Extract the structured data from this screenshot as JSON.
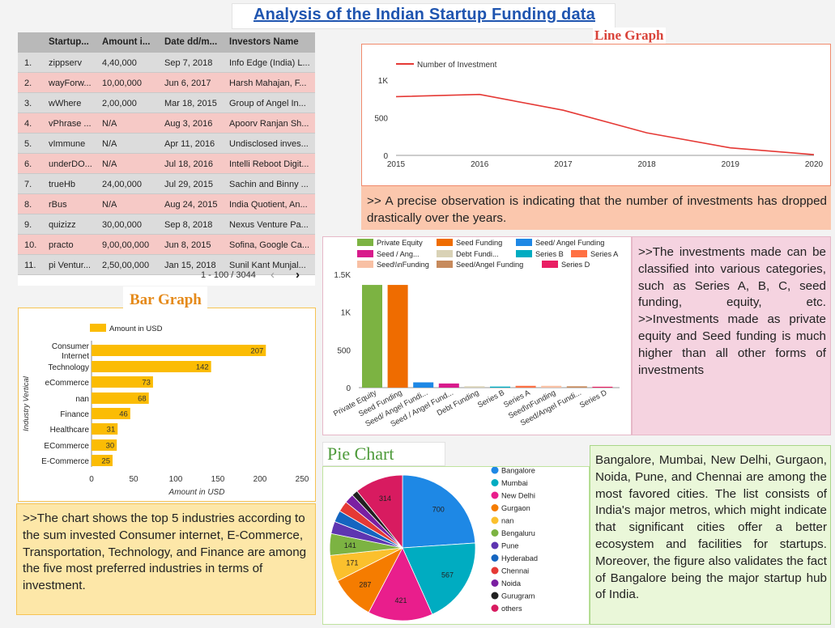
{
  "page": {
    "title": "Analysis of the Indian Startup Funding data",
    "line_heading": "Line Graph",
    "bar_heading": "Bar Graph",
    "pie_heading": "Pie Chart"
  },
  "table": {
    "headers": [
      "Startup...",
      "Amount i...",
      "Date dd/m...",
      "Investors Name"
    ],
    "rows": [
      {
        "idx": "1.",
        "name": "zippserv",
        "amount": "4,40,000",
        "date": "Sep 7, 2018",
        "investors": "Info Edge (India) L..."
      },
      {
        "idx": "2.",
        "name": "wayForw...",
        "amount": "10,00,000",
        "date": "Jun 6, 2017",
        "investors": "Harsh Mahajan, F..."
      },
      {
        "idx": "3.",
        "name": "wWhere",
        "amount": "2,00,000",
        "date": "Mar 18, 2015",
        "investors": "Group of Angel In..."
      },
      {
        "idx": "4.",
        "name": "vPhrase ...",
        "amount": "N/A",
        "date": "Aug 3, 2016",
        "investors": "Apoorv Ranjan Sh..."
      },
      {
        "idx": "5.",
        "name": "vImmune",
        "amount": "N/A",
        "date": "Apr 11, 2016",
        "investors": "Undisclosed inves..."
      },
      {
        "idx": "6.",
        "name": "underDO...",
        "amount": "N/A",
        "date": "Jul 18, 2016",
        "investors": "Intelli Reboot Digit..."
      },
      {
        "idx": "7.",
        "name": "trueHb",
        "amount": "24,00,000",
        "date": "Jul 29, 2015",
        "investors": "Sachin and Binny ..."
      },
      {
        "idx": "8.",
        "name": "rBus",
        "amount": "N/A",
        "date": "Aug 24, 2015",
        "investors": "India Quotient, An..."
      },
      {
        "idx": "9.",
        "name": "quizizz",
        "amount": "30,00,000",
        "date": "Sep 8, 2018",
        "investors": "Nexus Venture Pa..."
      },
      {
        "idx": "10.",
        "name": "practo",
        "amount": "9,00,00,000",
        "date": "Jun 8, 2015",
        "investors": "Sofina, Google Ca..."
      },
      {
        "idx": "11.",
        "name": "pi Ventur...",
        "amount": "2,50,00,000",
        "date": "Jan 15, 2018",
        "investors": "Sunil Kant Munjal..."
      }
    ],
    "pager": "1 - 100 / 3044",
    "prev_icon": "‹",
    "next_icon": "›"
  },
  "texts": {
    "line": ">> A precise observation is indicating that the number of investments has dropped drastically over the years.",
    "investment": ">>The investments made can be classified into various categories, such as Series A, B, C, seed funding, equity, etc. >>Investments made as private equity and Seed funding is much higher than all other forms of investments",
    "bar": ">>The chart shows the top 5 industries according to the sum invested Consumer internet, E-Commerce, Transportation, Technology, and Finance are among the five most preferred industries in terms of investment.",
    "pie": "Bangalore, Mumbai, New Delhi, Gurgaon, Noida, Pune, and Chennai are among the most favored cities. The list consists of India's major metros, which might indicate that significant cities offer a better ecosystem and facilities for startups. Moreover, the figure also validates the fact of Bangalore being the major startup hub of India."
  },
  "chart_data": [
    {
      "type": "line",
      "legend": [
        "Number of Investment"
      ],
      "x": [
        2015,
        2016,
        2017,
        2018,
        2019,
        2020
      ],
      "series": [
        {
          "name": "Number of Investment",
          "values": [
            780,
            810,
            600,
            300,
            100,
            10
          ],
          "color": "#e53935"
        }
      ],
      "yticks": [
        0,
        500,
        "1K"
      ],
      "ylim": [
        0,
        1000
      ],
      "legend_position": "top-left"
    },
    {
      "type": "bar",
      "orientation": "vertical",
      "categories": [
        "Private Equity",
        "Seed Funding",
        "Seed/ Angel Fundi...",
        "Seed / Angel Fund...",
        "Debt Funding",
        "Series B",
        "Series A",
        "Seed\\nFunding",
        "Seed/Angel Fundi...",
        "Series D"
      ],
      "values": [
        1360,
        1360,
        70,
        55,
        18,
        14,
        24,
        24,
        18,
        12
      ],
      "colors": [
        "#7cb342",
        "#ef6c00",
        "#1e88e5",
        "#d81b8c",
        "#d9d2b6",
        "#00acc1",
        "#ff7043",
        "#f8c0a4",
        "#c78a5c",
        "#e91e63"
      ],
      "legend": [
        {
          "name": "Private Equity",
          "color": "#7cb342"
        },
        {
          "name": "Seed Funding",
          "color": "#ef6c00"
        },
        {
          "name": "Seed/ Angel Funding",
          "color": "#1e88e5"
        },
        {
          "name": "Seed / Ang...",
          "color": "#d81b8c"
        },
        {
          "name": "Debt Fundi...",
          "color": "#d9d2b6"
        },
        {
          "name": "Series B",
          "color": "#00acc1"
        },
        {
          "name": "Series A",
          "color": "#ff7043"
        },
        {
          "name": "Seed\\\\nFunding",
          "color": "#f8c0a4"
        },
        {
          "name": "Seed/Angel Funding",
          "color": "#c78a5c"
        },
        {
          "name": "Series D",
          "color": "#e91e63"
        }
      ],
      "yticks": [
        0,
        500,
        "1K",
        "1.5K"
      ],
      "ylim": [
        0,
        1500
      ],
      "legend_position": "top"
    },
    {
      "type": "bar",
      "orientation": "horizontal",
      "categories": [
        "Consumer Internet",
        "Technology",
        "eCommerce",
        "nan",
        "Finance",
        "Healthcare",
        "ECommerce",
        "E-Commerce"
      ],
      "values": [
        207,
        142,
        73,
        68,
        46,
        31,
        30,
        25
      ],
      "color": "#fbbc04",
      "legend": [
        "Amount in USD"
      ],
      "xlabel": "Amount in USD",
      "ylabel": "Industry Vertical",
      "xticks": [
        0,
        50,
        100,
        150,
        200,
        250
      ],
      "xlim": [
        0,
        250
      ],
      "legend_position": "top"
    },
    {
      "type": "pie",
      "labels": [
        "Bangalore",
        "Mumbai",
        "New Delhi",
        "Gurgaon",
        "nan",
        "Bengaluru",
        "Pune",
        "Hyderabad",
        "Chennai",
        "Noida",
        "Gurugram",
        "others"
      ],
      "values": [
        700,
        567,
        421,
        287,
        171,
        141,
        80,
        75,
        70,
        60,
        40,
        314
      ],
      "colors": [
        "#1e88e5",
        "#00acc1",
        "#e91e8c",
        "#f57c00",
        "#fbc02d",
        "#7cb342",
        "#5e35b1",
        "#1565c0",
        "#e53935",
        "#7b1fa2",
        "#212121",
        "#d81b60"
      ],
      "legend_position": "right"
    }
  ]
}
